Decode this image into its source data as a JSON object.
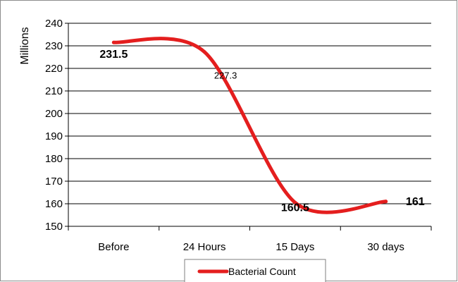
{
  "chart_data": {
    "type": "line",
    "title": "",
    "xlabel": "",
    "ylabel": "Millions",
    "categories": [
      "Before",
      "24 Hours",
      "15 Days",
      "30 days"
    ],
    "series": [
      {
        "name": "Bacterial Count",
        "values": [
          231.5,
          227.3,
          160.5,
          161
        ],
        "data_labels": [
          "231.5",
          "227.3",
          "160.5",
          "161"
        ],
        "color": "#e41e1e"
      }
    ],
    "ylim": [
      150,
      240
    ],
    "yticks": [
      150,
      160,
      170,
      180,
      190,
      200,
      210,
      220,
      230,
      240
    ],
    "grid": true,
    "smoothed": true,
    "legend_position": "bottom"
  }
}
